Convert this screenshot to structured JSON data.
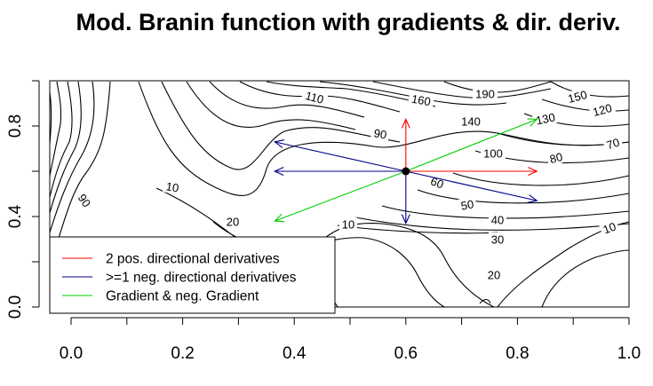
{
  "chart_data": {
    "type": "contour",
    "title": "Mod. Branin function with gradients & dir. deriv.",
    "xlim": [
      0,
      1
    ],
    "ylim": [
      0,
      1
    ],
    "x_ticks": [
      "0.0",
      "0.2",
      "0.4",
      "0.6",
      "0.8",
      "1.0"
    ],
    "y_ticks": [
      "0.0",
      "0.4",
      "0.8"
    ],
    "grid": false,
    "contour_labels": [
      "10",
      "10",
      "10",
      "20",
      "20",
      "30",
      "40",
      "50",
      "60",
      "70",
      "80",
      "90",
      "90",
      "100",
      "110",
      "120",
      "130",
      "140",
      "150",
      "160",
      "190"
    ],
    "point": {
      "x": 0.6,
      "y": 0.6
    },
    "arrows": [
      {
        "series": "pos",
        "x0": 0.6,
        "y0": 0.6,
        "x1": 0.835,
        "y1": 0.6
      },
      {
        "series": "pos",
        "x0": 0.6,
        "y0": 0.6,
        "x1": 0.6,
        "y1": 0.83
      },
      {
        "series": "neg",
        "x0": 0.6,
        "y0": 0.6,
        "x1": 0.365,
        "y1": 0.6
      },
      {
        "series": "neg",
        "x0": 0.6,
        "y0": 0.6,
        "x1": 0.6,
        "y1": 0.37
      },
      {
        "series": "neg",
        "x0": 0.6,
        "y0": 0.6,
        "x1": 0.365,
        "y1": 0.73
      },
      {
        "series": "neg",
        "x0": 0.6,
        "y0": 0.6,
        "x1": 0.835,
        "y1": 0.47
      },
      {
        "series": "grad",
        "x0": 0.6,
        "y0": 0.6,
        "x1": 0.835,
        "y1": 0.83
      },
      {
        "series": "grad",
        "x0": 0.6,
        "y0": 0.6,
        "x1": 0.365,
        "y1": 0.38
      }
    ],
    "legend": {
      "placement": "bottom-left",
      "entries": [
        {
          "key": "pos",
          "label": "2 pos. directional derivatives",
          "color": "#ff0000"
        },
        {
          "key": "neg",
          "label": ">=1 neg. directional derivatives",
          "color": "#00008b"
        },
        {
          "key": "grad",
          "label": "Gradient & neg. Gradient",
          "color": "#00cd00"
        }
      ]
    }
  }
}
